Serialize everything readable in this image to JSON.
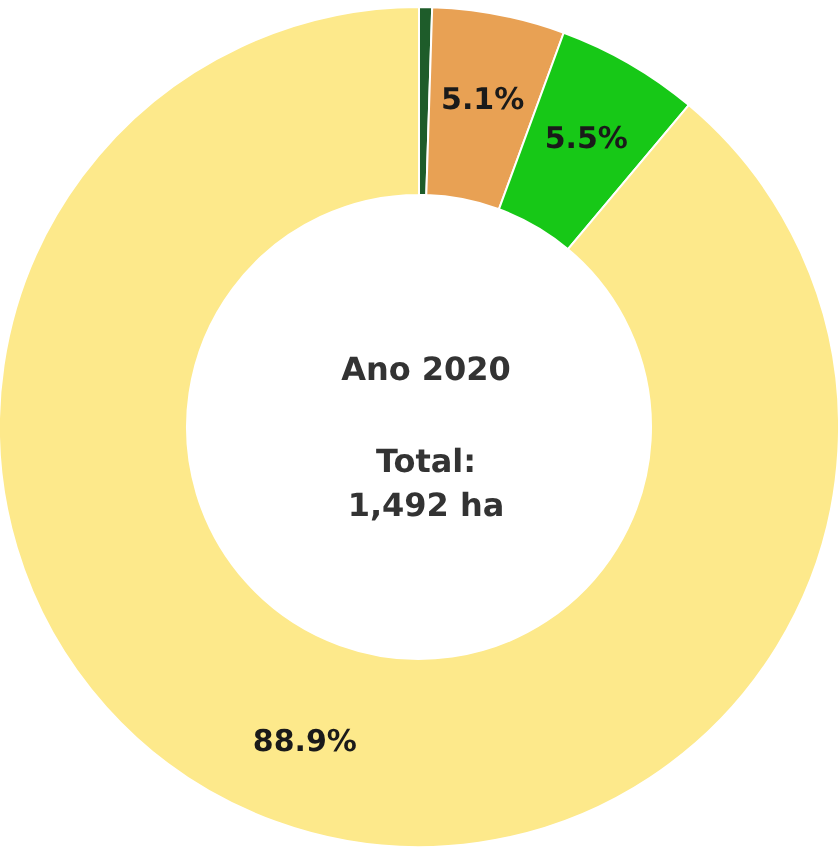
{
  "chart_data": {
    "type": "donut",
    "categories": [
      null,
      null,
      null,
      null
    ],
    "values": [
      0.5,
      5.1,
      5.5,
      88.9
    ],
    "colors": [
      "#1e5c2a",
      "#e8a154",
      "#17c817",
      "#fde98b"
    ],
    "value_labels": [
      null,
      "5.1%",
      "5.5%",
      "88.9%"
    ],
    "annotations": [
      "Ano 2020",
      "Total:",
      "1,492 ha"
    ]
  }
}
